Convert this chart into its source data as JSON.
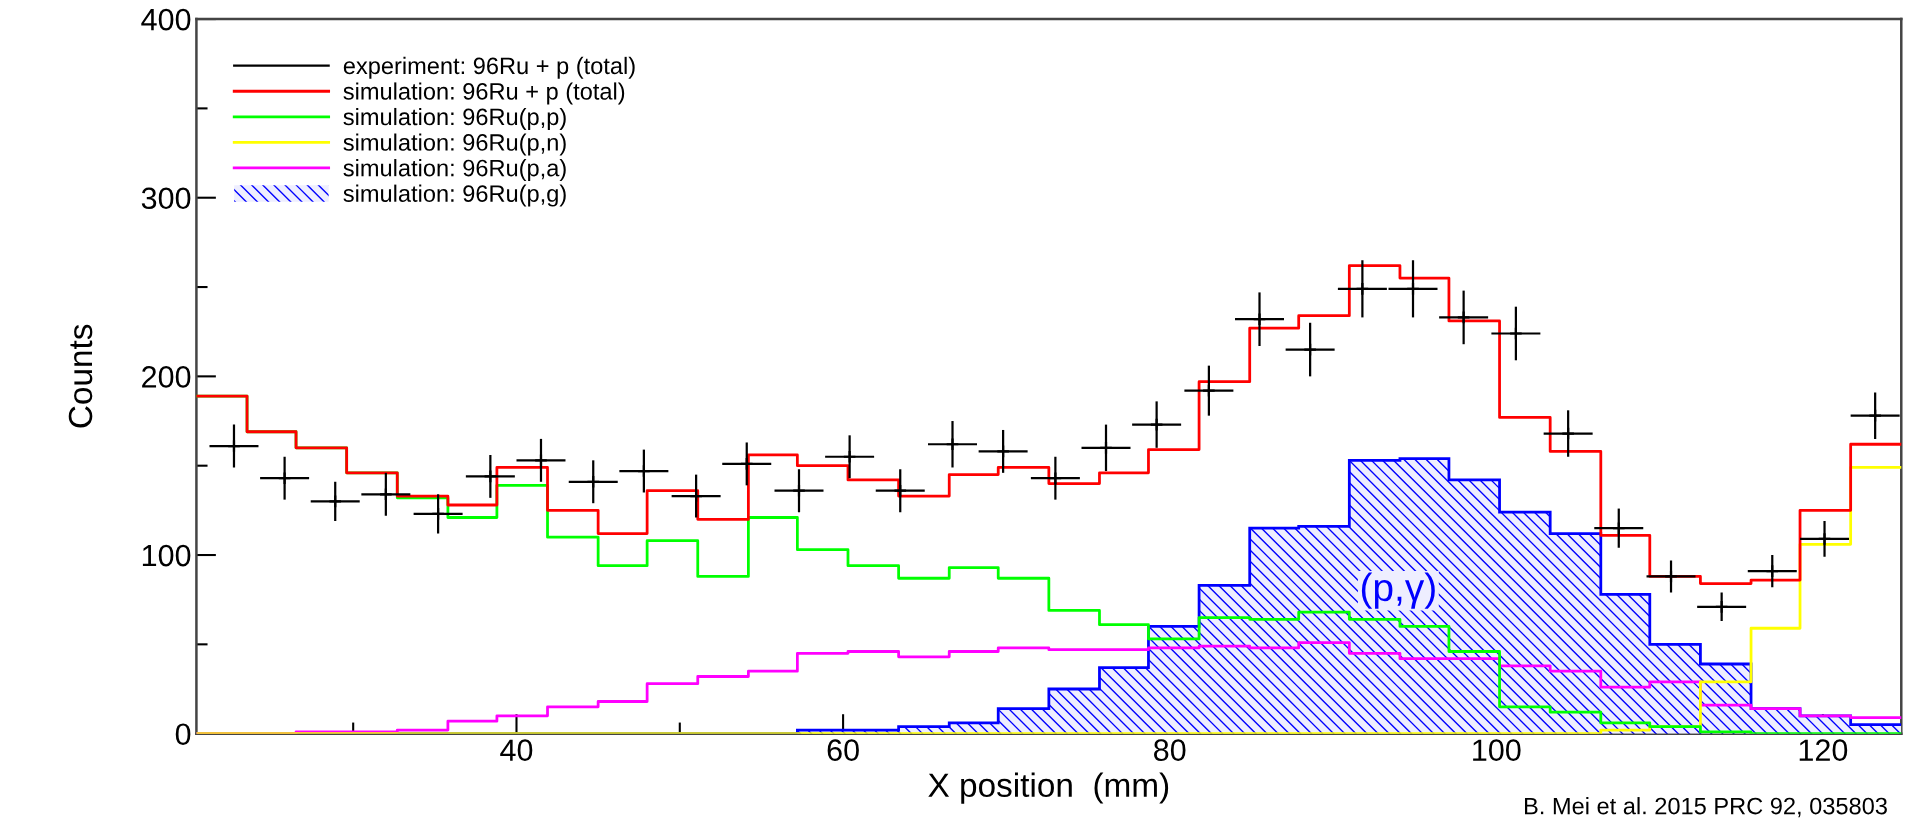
{
  "chart_data": {
    "type": "histogram",
    "xlabel": "X position  (mm)",
    "ylabel": "Counts",
    "xlim": [
      20.4,
      124.8
    ],
    "ylim": [
      0,
      400
    ],
    "xticks": [
      {
        "value": 30,
        "label": null
      },
      40,
      {
        "value": 50,
        "label": null
      },
      60,
      {
        "value": 70,
        "label": null
      },
      80,
      {
        "value": 90,
        "label": null
      },
      100,
      {
        "value": 110,
        "label": null
      },
      120
    ],
    "yticks": [
      0,
      {
        "value": 50,
        "label": null
      },
      100,
      {
        "value": 150,
        "label": null
      },
      200,
      {
        "value": 250,
        "label": null
      },
      300,
      {
        "value": 350,
        "label": null
      },
      400
    ],
    "grid": false,
    "legend": "top left",
    "bins": [
      20.4,
      23.5,
      26.5,
      29.6,
      32.7,
      35.8,
      38.8,
      41.9,
      45.0,
      48.0,
      51.1,
      54.2,
      57.2,
      60.3,
      63.4,
      66.5,
      69.5,
      72.6,
      75.7,
      78.7,
      81.8,
      84.9,
      87.9,
      91.0,
      94.1,
      97.1,
      100.2,
      103.3,
      106.4,
      109.4,
      112.5,
      115.6,
      118.6,
      121.7,
      124.8
    ],
    "series": [
      {
        "name": "experiment: 96Ru + p (total)",
        "type": "scatter",
        "color": "#000000",
        "marker": "cross",
        "x": [
          22.7,
          25.8,
          28.9,
          32.0,
          35.2,
          38.4,
          41.5,
          44.7,
          47.8,
          51.0,
          54.1,
          57.3,
          60.4,
          63.5,
          66.7,
          69.8,
          73.0,
          76.1,
          79.2,
          82.4,
          85.5,
          88.6,
          91.8,
          94.9,
          98.0,
          101.2,
          104.4,
          107.5,
          110.7,
          113.8,
          116.9,
          120.1,
          123.2
        ],
        "values": [
          161,
          143,
          130,
          134,
          123,
          144,
          153,
          141,
          147,
          133,
          151,
          136,
          155,
          136,
          162,
          158,
          143,
          160,
          173,
          192,
          232,
          215,
          249,
          249,
          233,
          224,
          168,
          115,
          88,
          71,
          91,
          109,
          178
        ],
        "errors": [
          12,
          12,
          11,
          12,
          11,
          12,
          12,
          12,
          12,
          12,
          12,
          12,
          12,
          12,
          13,
          12,
          12,
          13,
          13,
          14,
          15,
          15,
          16,
          16,
          15,
          15,
          13,
          11,
          9,
          8,
          9,
          10,
          13
        ],
        "xerrors": [
          1.5,
          1.5,
          1.5,
          1.5,
          1.5,
          1.5,
          1.5,
          1.5,
          1.5,
          1.5,
          1.5,
          1.5,
          1.5,
          1.5,
          1.5,
          1.5,
          1.5,
          1.5,
          1.5,
          1.5,
          1.5,
          1.5,
          1.5,
          1.5,
          1.5,
          1.5,
          1.5,
          1.5,
          1.5,
          1.5,
          1.5,
          1.5,
          1.5
        ]
      },
      {
        "name": "simulation: 96Ru + p (total)",
        "color": "#ff0000",
        "values": [
          189,
          169,
          160,
          146,
          133,
          128,
          149,
          125,
          112,
          136,
          120,
          156,
          150,
          142,
          133,
          145,
          149,
          140,
          146,
          159,
          197,
          227,
          234,
          262,
          255,
          231,
          177,
          158,
          111,
          88,
          84,
          86,
          125,
          162
        ]
      },
      {
        "name": "simulation: 96Ru(p,p)",
        "color": "#00ff00",
        "values": [
          189,
          169,
          160,
          146,
          132,
          121,
          139,
          110,
          94,
          108,
          88,
          121,
          103,
          94,
          87,
          93,
          87,
          69,
          61,
          53,
          65,
          64,
          68,
          64,
          60,
          46,
          15,
          12,
          6,
          4,
          1,
          0,
          0,
          0
        ]
      },
      {
        "name": "simulation: 96Ru(p,n)",
        "color": "#ffff00",
        "values": [
          0,
          0,
          0,
          0,
          0,
          0,
          0,
          0,
          0,
          0,
          0,
          0,
          0,
          0,
          0,
          0,
          0,
          0,
          0,
          0,
          0,
          0,
          0,
          0,
          0,
          0,
          0,
          0,
          2,
          4,
          29,
          59,
          106,
          149
        ]
      },
      {
        "name": "simulation: 96Ru(p,a)",
        "color": "#ff00ff",
        "values": [
          0,
          0,
          1,
          1,
          2,
          7,
          10,
          15,
          18,
          28,
          32,
          35,
          45,
          46,
          43,
          46,
          48,
          47,
          47,
          48,
          49,
          48,
          51,
          45,
          42,
          42,
          38,
          35,
          26,
          29,
          16,
          14,
          10,
          9
        ]
      },
      {
        "name": "simulation: 96Ru(p,g)",
        "type": "histogram",
        "color": "#0000ff",
        "values": [
          0,
          0,
          0,
          0,
          0,
          0,
          0,
          0,
          0,
          0,
          0,
          0,
          2,
          2,
          4,
          6,
          14,
          25,
          37,
          60,
          83,
          115,
          116,
          153,
          154,
          142,
          124,
          112,
          78,
          50,
          39,
          14,
          10,
          5
        ]
      }
    ],
    "annotations": [
      "(p,γ)",
      "B. Mei et al. 2015 PRC 92, 035803"
    ]
  }
}
